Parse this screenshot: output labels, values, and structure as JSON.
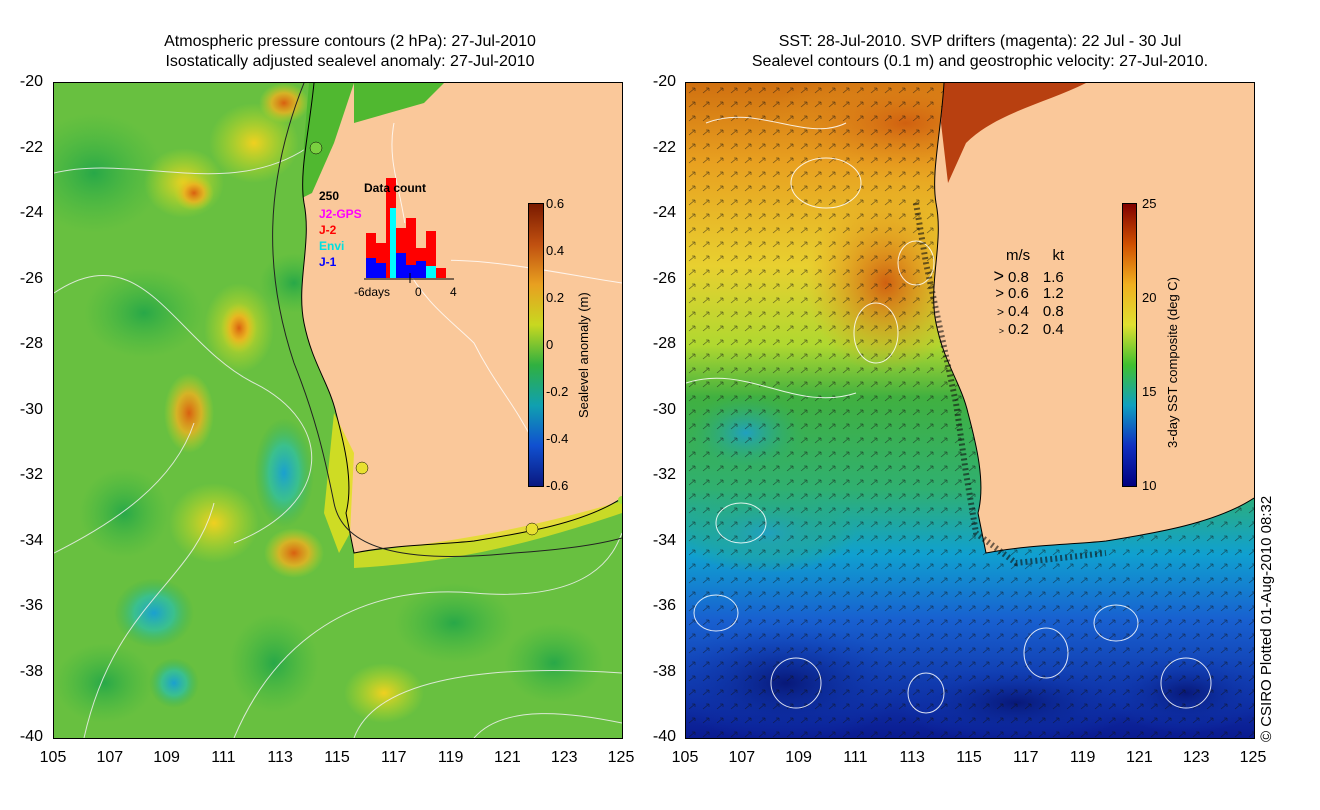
{
  "left_panel": {
    "title_line1": "Atmospheric pressure contours (2 hPa): 27-Jul-2010",
    "title_line2": "Isostatically adjusted sealevel anomaly: 27-Jul-2010",
    "colorbar": {
      "label": "Sealevel anomaly (m)",
      "ticks": [
        "0.6",
        "0.4",
        "0.2",
        "0",
        "-0.2",
        "-0.4",
        "-0.6"
      ],
      "colors": [
        "#7a1a00",
        "#c05010",
        "#e8a020",
        "#c8d820",
        "#30b040",
        "#10a0b0",
        "#1050d0",
        "#0a1880"
      ]
    },
    "inset": {
      "title": "Data count",
      "y_label": "250",
      "missions": [
        {
          "name": "J2-GPS",
          "color": "#ff00ff"
        },
        {
          "name": "J-2",
          "color": "#ff0000"
        },
        {
          "name": "Envi",
          "color": "#00ffff"
        },
        {
          "name": "J-1",
          "color": "#0000ff"
        }
      ],
      "x_labels": [
        "-6days",
        "0",
        "4"
      ]
    }
  },
  "right_panel": {
    "title_line1": "SST: 28-Jul-2010. SVP drifters (magenta): 22 Jul - 30 Jul",
    "title_line2": "Sealevel contours (0.1 m) and geostrophic velocity: 27-Jul-2010.",
    "colorbar": {
      "label": "3-day SST composite (deg C)",
      "ticks": [
        "25",
        "20",
        "15",
        "10"
      ],
      "colors": [
        "#800000",
        "#d05000",
        "#f0b020",
        "#e0e030",
        "#40c030",
        "#10a0c0",
        "#1030c0",
        "#000080"
      ]
    },
    "speed_legend": {
      "header_ms": "m/s",
      "header_kt": "kt",
      "rows": [
        {
          "ms": "0.8",
          "kt": "1.6"
        },
        {
          "ms": "0.6",
          "kt": "1.2"
        },
        {
          "ms": "0.4",
          "kt": "0.8"
        },
        {
          "ms": "0.2",
          "kt": "0.4"
        }
      ]
    }
  },
  "axes": {
    "lat_ticks": [
      "-20",
      "-22",
      "-24",
      "-26",
      "-28",
      "-30",
      "-32",
      "-34",
      "-36",
      "-38",
      "-40"
    ],
    "lon_ticks": [
      "105",
      "107",
      "109",
      "111",
      "113",
      "115",
      "117",
      "119",
      "121",
      "123",
      "125"
    ]
  },
  "land_color": "#fac89a",
  "credit": "© CSIRO Plotted 01-Aug-2010 08:32"
}
